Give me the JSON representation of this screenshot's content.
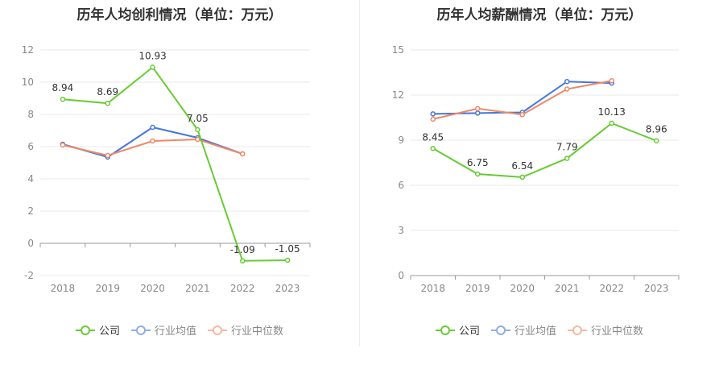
{
  "chart_data": [
    {
      "type": "line",
      "title": "历年人均创利情况（单位：万元）",
      "categories": [
        "2018",
        "2019",
        "2020",
        "2021",
        "2022",
        "2023"
      ],
      "ylim": [
        -2,
        12
      ],
      "yticks": [
        -2,
        0,
        2,
        4,
        6,
        8,
        10,
        12
      ],
      "grid": true,
      "legend_position": "bottom",
      "series": [
        {
          "name": "公司",
          "color": "#66cc33",
          "values": [
            8.94,
            8.69,
            10.93,
            7.05,
            -1.09,
            -1.05
          ],
          "labels": [
            "8.94",
            "8.69",
            "10.93",
            "7.05",
            "-1.09",
            "-1.05"
          ]
        },
        {
          "name": "行业均值",
          "color": "#4477dd",
          "values": [
            6.15,
            5.35,
            7.2,
            6.55,
            5.55,
            null
          ]
        },
        {
          "name": "行业中位数",
          "color": "#ee8866",
          "values": [
            6.1,
            5.45,
            6.35,
            6.45,
            5.55,
            null
          ]
        }
      ]
    },
    {
      "type": "line",
      "title": "历年人均薪酬情况（单位：万元）",
      "categories": [
        "2018",
        "2019",
        "2020",
        "2021",
        "2022",
        "2023"
      ],
      "ylim": [
        0,
        15
      ],
      "yticks": [
        0,
        3,
        6,
        9,
        12,
        15
      ],
      "grid": true,
      "legend_position": "bottom",
      "series": [
        {
          "name": "公司",
          "color": "#66cc33",
          "values": [
            8.45,
            6.75,
            6.54,
            7.79,
            10.13,
            8.96
          ],
          "labels": [
            "8.45",
            "6.75",
            "6.54",
            "7.79",
            "10.13",
            "8.96"
          ]
        },
        {
          "name": "行业均值",
          "color": "#4477dd",
          "values": [
            10.75,
            10.8,
            10.85,
            12.9,
            12.8,
            null
          ]
        },
        {
          "name": "行业中位数",
          "color": "#ee8866",
          "values": [
            10.4,
            11.1,
            10.7,
            12.4,
            12.95,
            null
          ]
        }
      ]
    }
  ]
}
